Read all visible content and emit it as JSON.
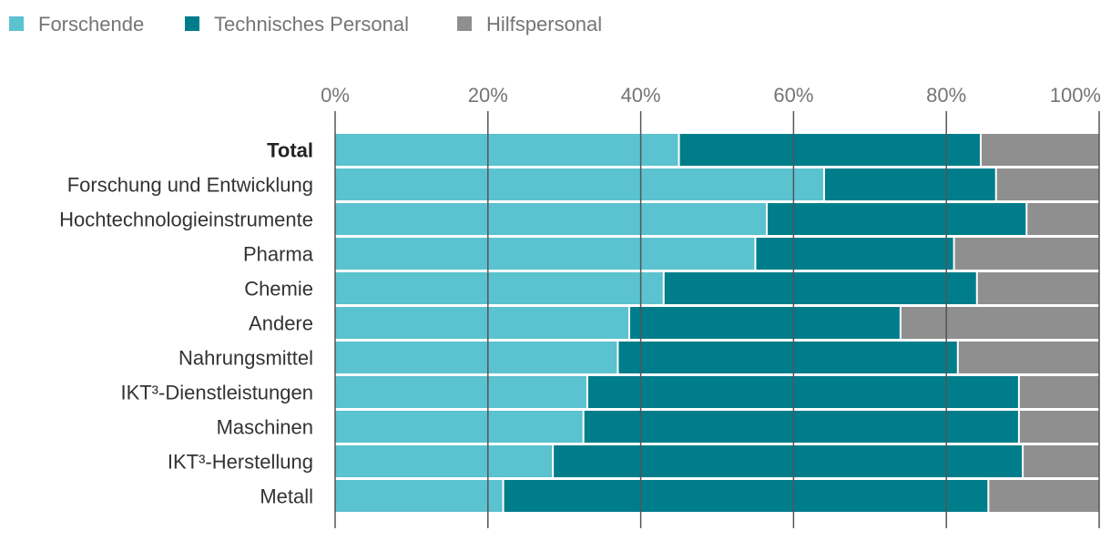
{
  "chart_data": {
    "type": "bar",
    "orientation": "horizontal",
    "stacked": true,
    "normalized": true,
    "title": "",
    "xlabel": "",
    "ylabel": "",
    "xlim": [
      0,
      100
    ],
    "ticks": [
      "0%",
      "20%",
      "40%",
      "60%",
      "80%",
      "100%"
    ],
    "tick_values": [
      0,
      20,
      40,
      60,
      80,
      100
    ],
    "legend_position": "top-left",
    "categories": [
      "Total",
      "Forschung und Entwicklung",
      "Hochtechnologieinstrumente",
      "Pharma",
      "Chemie",
      "Andere",
      "Nahrungsmittel",
      "IKT³-Dienstleistungen",
      "Maschinen",
      "IKT³-Herstellung",
      "Metall"
    ],
    "bold_categories": [
      "Total"
    ],
    "series": [
      {
        "name": "Forschende",
        "color": "#5bc2cf",
        "values": [
          45.0,
          64.0,
          56.5,
          55.0,
          43.0,
          38.5,
          37.0,
          33.0,
          32.5,
          28.5,
          22.0
        ]
      },
      {
        "name": "Technisches Personal",
        "color": "#007d8b",
        "values": [
          39.5,
          22.5,
          34.0,
          26.0,
          41.0,
          35.5,
          44.5,
          56.5,
          57.0,
          61.5,
          63.5
        ]
      },
      {
        "name": "Hilfspersonal",
        "color": "#8f8f8f",
        "values": [
          15.5,
          13.5,
          9.5,
          19.0,
          16.0,
          26.0,
          18.5,
          10.5,
          10.5,
          10.0,
          14.5
        ]
      }
    ]
  }
}
